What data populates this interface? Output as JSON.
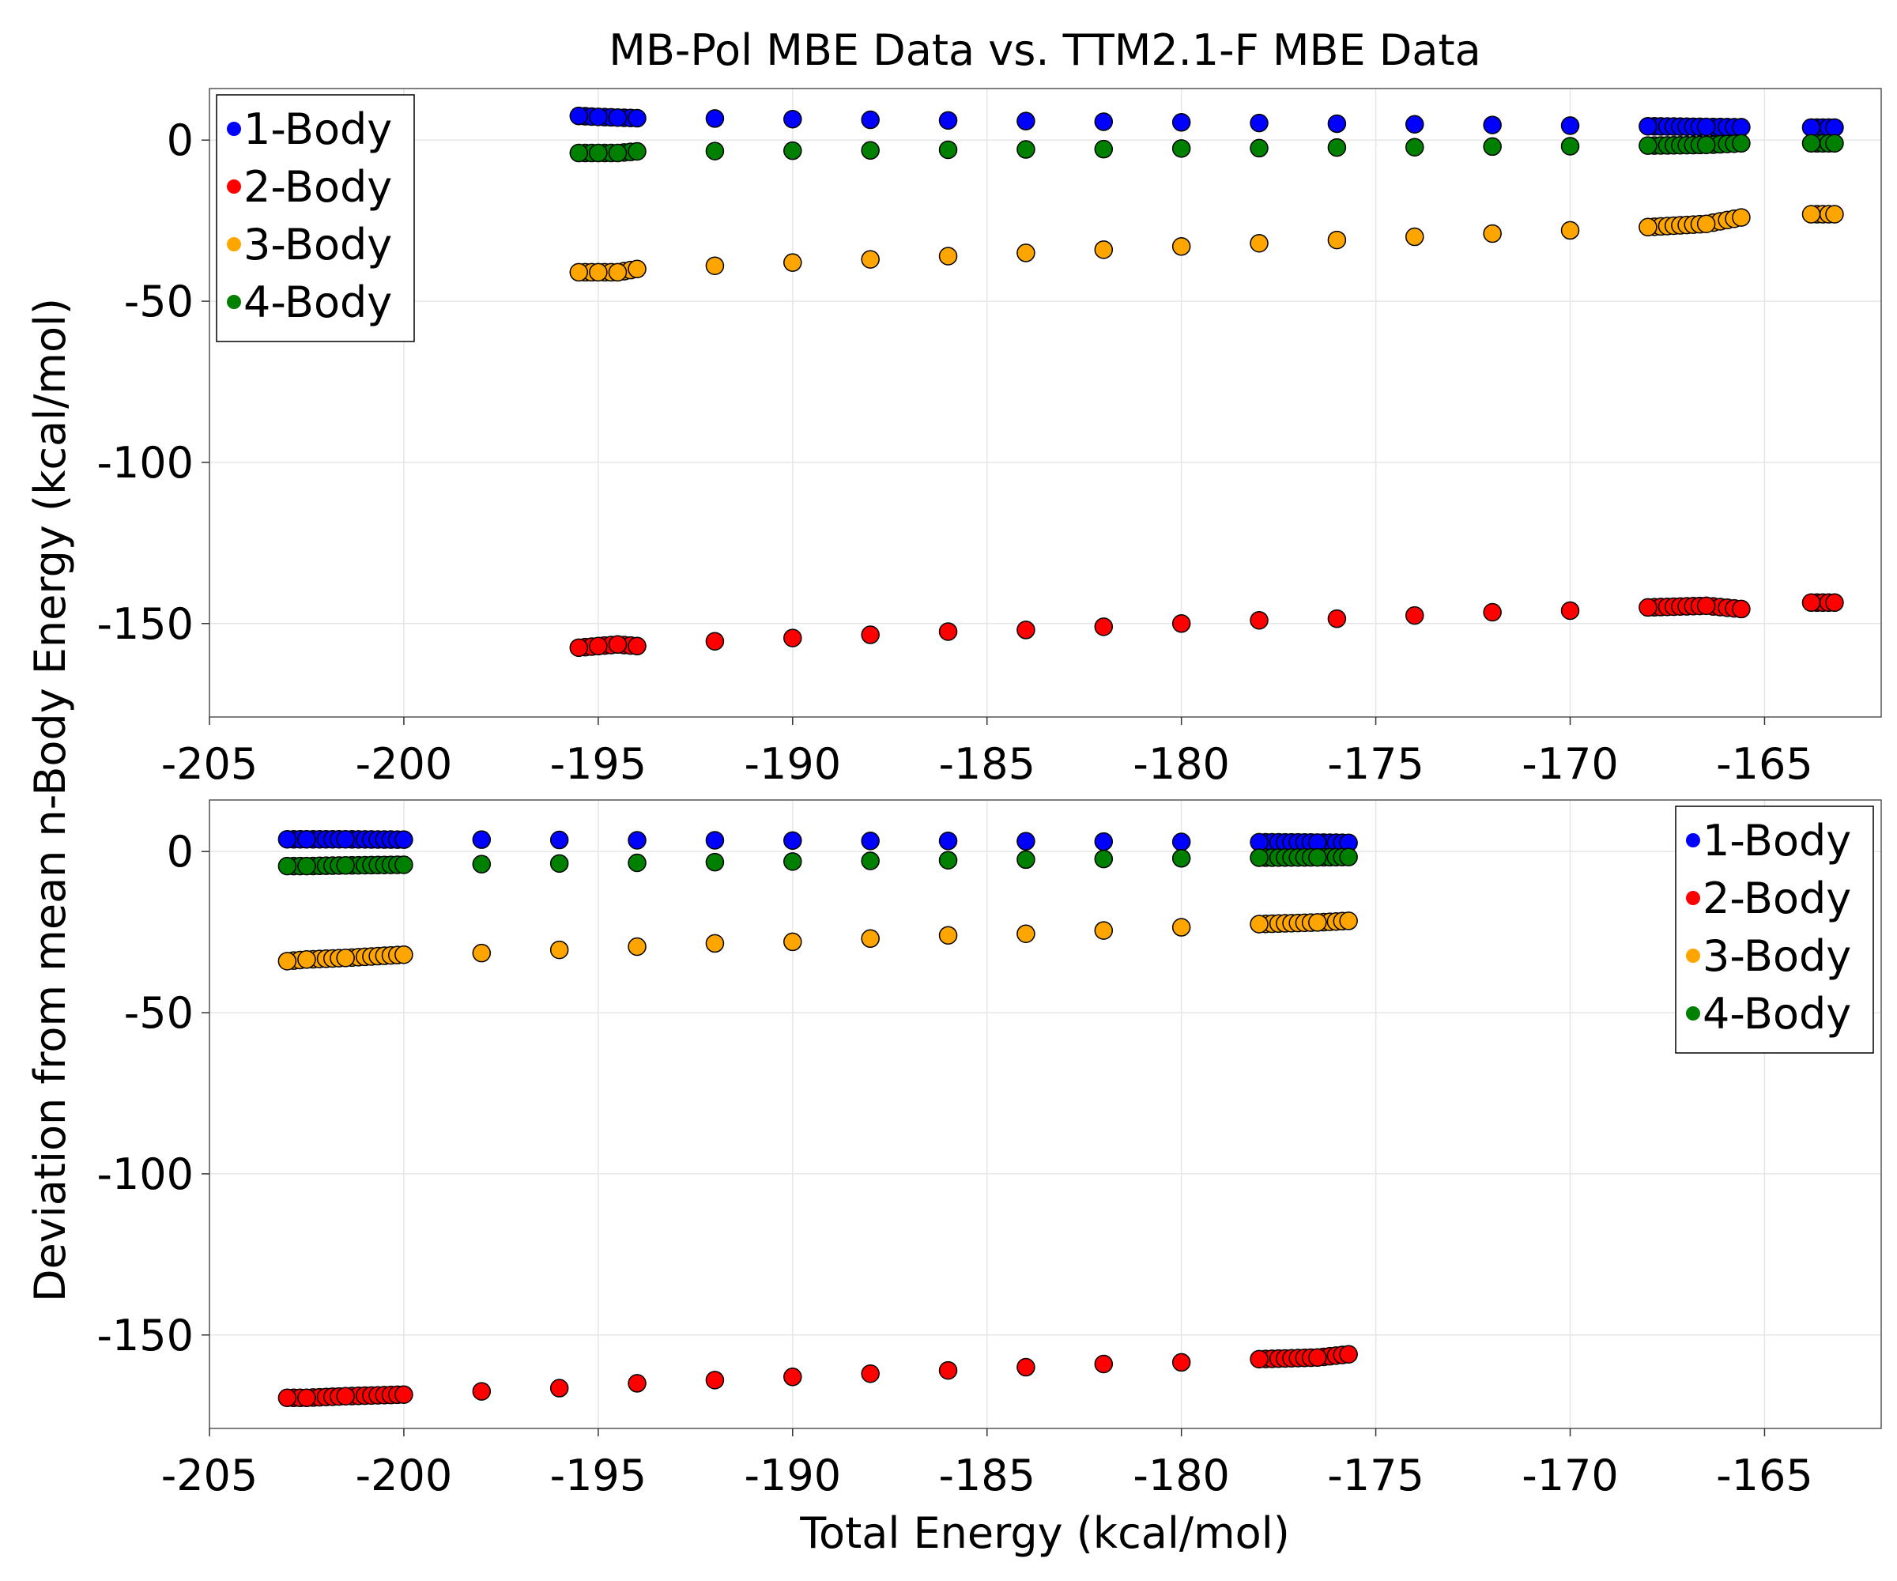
{
  "figure": {
    "title": "MB-Pol MBE Data vs. TTM2.1-F MBE Data",
    "xlabel": "Total Energy (kcal/mol)",
    "ylabel": "Deviation from mean n-Body Energy (kcal/mol)"
  },
  "colors": {
    "1-Body": "#0000ff",
    "2-Body": "#ff0000",
    "3-Body": "#ffa500",
    "4-Body": "#008000",
    "marker_edge": "#000000",
    "grid": "#e6e6e6"
  },
  "chart_data": [
    {
      "type": "scatter",
      "title": "MB-Pol MBE Data vs. TTM2.1-F MBE Data",
      "xlim": [
        -205,
        -162
      ],
      "ylim": [
        -179,
        16
      ],
      "xticks": [
        -205,
        -200,
        -195,
        -190,
        -185,
        -180,
        -175,
        -170,
        -165
      ],
      "yticks": [
        0,
        -50,
        -100,
        -150
      ],
      "grid": true,
      "legend": "top-left",
      "series": [
        {
          "name": "1-Body",
          "x": [
            -195.5,
            -195.0,
            -194.5,
            -194.0,
            -192.0,
            -190.0,
            -188.0,
            -186.0,
            -184.0,
            -182.0,
            -180.0,
            -178.0,
            -176.0,
            -174.0,
            -172.0,
            -170.0,
            -168.0,
            -166.5,
            -165.6,
            -163.8,
            -163.2
          ],
          "y": [
            7.5,
            7.2,
            7.0,
            6.8,
            6.7,
            6.5,
            6.3,
            6.1,
            5.9,
            5.7,
            5.5,
            5.3,
            5.1,
            4.9,
            4.7,
            4.5,
            4.3,
            4.1,
            4.0,
            3.9,
            3.9
          ]
        },
        {
          "name": "2-Body",
          "x": [
            -195.5,
            -195.0,
            -194.5,
            -194.0,
            -192.0,
            -190.0,
            -188.0,
            -186.0,
            -184.0,
            -182.0,
            -180.0,
            -178.0,
            -176.0,
            -174.0,
            -172.0,
            -170.0,
            -168.0,
            -166.5,
            -165.6,
            -163.8,
            -163.2
          ],
          "y": [
            -157.5,
            -157.0,
            -156.5,
            -157.0,
            -155.5,
            -154.5,
            -153.5,
            -152.5,
            -152.0,
            -151.0,
            -150.0,
            -149.0,
            -148.5,
            -147.5,
            -146.5,
            -146.0,
            -145.0,
            -144.5,
            -145.5,
            -143.5,
            -143.5
          ]
        },
        {
          "name": "3-Body",
          "x": [
            -195.5,
            -195.0,
            -194.5,
            -194.0,
            -192.0,
            -190.0,
            -188.0,
            -186.0,
            -184.0,
            -182.0,
            -180.0,
            -178.0,
            -176.0,
            -174.0,
            -172.0,
            -170.0,
            -168.0,
            -166.5,
            -165.6,
            -163.8,
            -163.2
          ],
          "y": [
            -41.0,
            -41.0,
            -41.0,
            -40.0,
            -39.0,
            -38.0,
            -37.0,
            -36.0,
            -35.0,
            -34.0,
            -33.0,
            -32.0,
            -31.0,
            -30.0,
            -29.0,
            -28.0,
            -27.0,
            -26.0,
            -24.0,
            -23.0,
            -23.0
          ]
        },
        {
          "name": "4-Body",
          "x": [
            -195.5,
            -195.0,
            -194.5,
            -194.0,
            -192.0,
            -190.0,
            -188.0,
            -186.0,
            -184.0,
            -182.0,
            -180.0,
            -178.0,
            -176.0,
            -174.0,
            -172.0,
            -170.0,
            -168.0,
            -166.5,
            -165.6,
            -163.8,
            -163.2
          ],
          "y": [
            -4.0,
            -4.0,
            -4.0,
            -3.5,
            -3.4,
            -3.3,
            -3.2,
            -3.0,
            -2.9,
            -2.8,
            -2.6,
            -2.5,
            -2.3,
            -2.2,
            -2.0,
            -1.9,
            -1.7,
            -1.5,
            -1.0,
            -1.0,
            -1.0
          ]
        }
      ]
    },
    {
      "type": "scatter",
      "xlim": [
        -205,
        -162
      ],
      "ylim": [
        -179,
        16
      ],
      "xticks": [
        -205,
        -200,
        -195,
        -190,
        -185,
        -180,
        -175,
        -170,
        -165
      ],
      "yticks": [
        0,
        -50,
        -100,
        -150
      ],
      "grid": true,
      "legend": "top-right",
      "series": [
        {
          "name": "1-Body",
          "x": [
            -203.0,
            -202.5,
            -201.5,
            -200.0,
            -198.0,
            -196.0,
            -194.0,
            -192.0,
            -190.0,
            -188.0,
            -186.0,
            -184.0,
            -182.0,
            -180.0,
            -178.0,
            -176.5,
            -175.7
          ],
          "y": [
            3.8,
            3.8,
            3.8,
            3.7,
            3.7,
            3.6,
            3.5,
            3.5,
            3.4,
            3.3,
            3.3,
            3.2,
            3.1,
            3.0,
            2.9,
            2.8,
            2.7
          ]
        },
        {
          "name": "2-Body",
          "x": [
            -203.0,
            -202.5,
            -201.5,
            -200.0,
            -198.0,
            -196.0,
            -194.0,
            -192.0,
            -190.0,
            -188.0,
            -186.0,
            -184.0,
            -182.0,
            -180.0,
            -178.0,
            -176.5,
            -175.7
          ],
          "y": [
            -169.5,
            -169.5,
            -169.0,
            -168.5,
            -167.5,
            -166.5,
            -165.0,
            -164.0,
            -163.0,
            -162.0,
            -161.0,
            -160.0,
            -159.0,
            -158.5,
            -157.5,
            -157.0,
            -156.0
          ]
        },
        {
          "name": "3-Body",
          "x": [
            -203.0,
            -202.5,
            -201.5,
            -200.0,
            -198.0,
            -196.0,
            -194.0,
            -192.0,
            -190.0,
            -188.0,
            -186.0,
            -184.0,
            -182.0,
            -180.0,
            -178.0,
            -176.5,
            -175.7
          ],
          "y": [
            -34.0,
            -33.5,
            -33.0,
            -32.0,
            -31.5,
            -30.5,
            -29.5,
            -28.5,
            -28.0,
            -27.0,
            -26.0,
            -25.5,
            -24.5,
            -23.5,
            -22.5,
            -22.0,
            -21.5
          ]
        },
        {
          "name": "4-Body",
          "x": [
            -203.0,
            -202.5,
            -201.5,
            -200.0,
            -198.0,
            -196.0,
            -194.0,
            -192.0,
            -190.0,
            -188.0,
            -186.0,
            -184.0,
            -182.0,
            -180.0,
            -178.0,
            -176.5,
            -175.7
          ],
          "y": [
            -4.5,
            -4.5,
            -4.3,
            -4.1,
            -3.9,
            -3.7,
            -3.5,
            -3.3,
            -3.1,
            -2.9,
            -2.7,
            -2.5,
            -2.3,
            -2.1,
            -1.9,
            -1.8,
            -1.7
          ]
        }
      ]
    }
  ]
}
